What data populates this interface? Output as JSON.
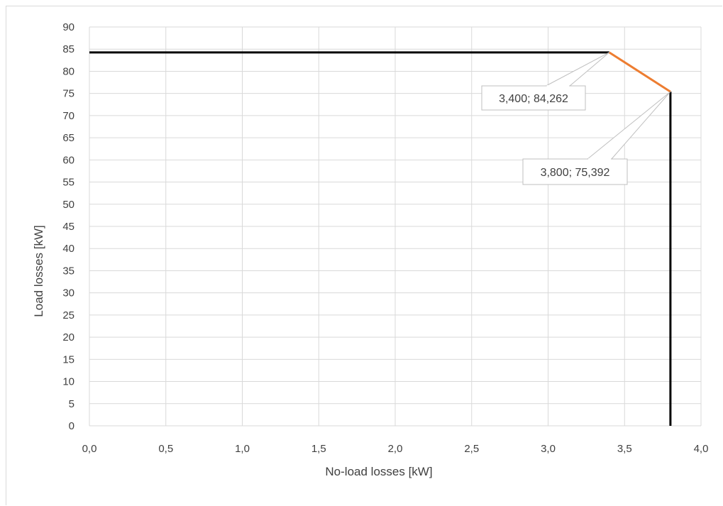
{
  "chart_data": {
    "type": "line",
    "xlabel": "No-load losses [kW]",
    "ylabel": "Load losses [kW]",
    "xlim": [
      0,
      4
    ],
    "ylim": [
      0,
      90
    ],
    "x_ticks": [
      "0,0",
      "0,5",
      "1,0",
      "1,5",
      "2,0",
      "2,5",
      "3,0",
      "3,5",
      "4,0"
    ],
    "y_ticks": [
      "0",
      "5",
      "10",
      "15",
      "20",
      "25",
      "30",
      "35",
      "40",
      "45",
      "50",
      "55",
      "60",
      "65",
      "70",
      "75",
      "80",
      "85",
      "90"
    ],
    "grid": true,
    "series": [
      {
        "color": "#000000",
        "points": [
          [
            0,
            84.262
          ],
          [
            3.4,
            84.262
          ]
        ]
      },
      {
        "color": "#ed7d31",
        "points": [
          [
            3.4,
            84.262
          ],
          [
            3.8,
            75.392
          ]
        ]
      },
      {
        "color": "#000000",
        "points": [
          [
            3.8,
            75.392
          ],
          [
            3.8,
            0
          ]
        ]
      }
    ],
    "annotations": [
      {
        "text": "3,400; 84,262",
        "x": 3.4,
        "y": 84.262
      },
      {
        "text": "3,800; 75,392",
        "x": 3.8,
        "y": 75.392
      }
    ]
  }
}
